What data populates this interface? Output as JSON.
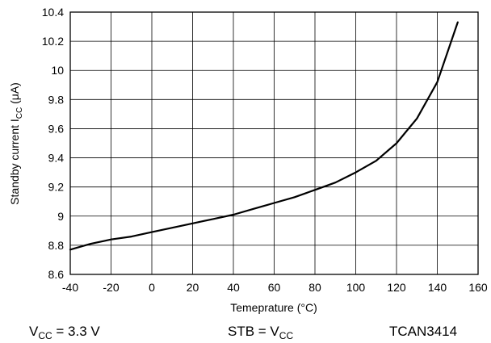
{
  "chart_data": {
    "type": "line",
    "xlabel": "Temeprature (°C)",
    "ylabel": {
      "text": "Standby current I",
      "sub": "CC",
      "unit": " (μA)"
    },
    "xlim": [
      -40,
      160
    ],
    "ylim": [
      8.6,
      10.4
    ],
    "x_ticks": [
      -40,
      -20,
      0,
      20,
      40,
      60,
      80,
      100,
      120,
      140,
      160
    ],
    "y_ticks": [
      8.6,
      8.8,
      9,
      9.2,
      9.4,
      9.6,
      9.8,
      10,
      10.2,
      10.4
    ],
    "x_tick_labels": [
      "-40",
      "-20",
      "0",
      "20",
      "40",
      "60",
      "80",
      "100",
      "120",
      "140",
      "160"
    ],
    "y_tick_labels": [
      "8.6",
      "8.8",
      "9",
      "9.2",
      "9.4",
      "9.6",
      "9.8",
      "10",
      "10.2",
      "10.4"
    ],
    "grid": true,
    "line_color": "#000000",
    "series": [
      {
        "x": [
          -40,
          -30,
          -20,
          -10,
          0,
          10,
          20,
          30,
          40,
          50,
          60,
          70,
          80,
          90,
          100,
          110,
          120,
          130,
          140,
          150
        ],
        "y": [
          8.77,
          8.81,
          8.84,
          8.86,
          8.89,
          8.92,
          8.95,
          8.98,
          9.01,
          9.05,
          9.09,
          9.13,
          9.18,
          9.23,
          9.3,
          9.38,
          9.5,
          9.67,
          9.92,
          10.33
        ]
      }
    ]
  },
  "footer": {
    "vcc": {
      "main": "V",
      "sub": "CC",
      "rest": " = 3.3 V"
    },
    "stb": {
      "main": "STB = V",
      "sub": "CC"
    },
    "part": "TCAN3414"
  }
}
